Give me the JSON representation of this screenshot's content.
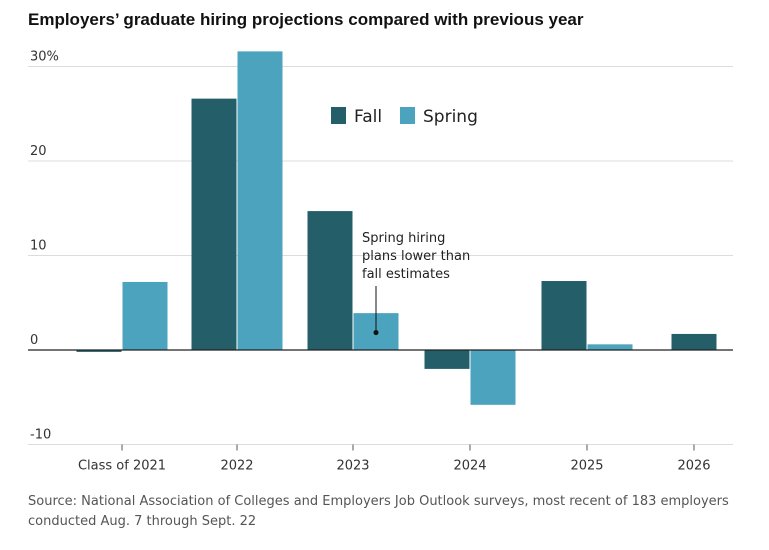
{
  "title": "Employers’ graduate hiring projections compared with previous year",
  "source": "Source: National Association of Colleges and Employers Job Outlook surveys, most recent of 183 employers conducted Aug. 7 through Sept. 22",
  "colors": {
    "fall": "#245f69",
    "spring": "#4ba3bd",
    "grid": "#dcdcdc",
    "axis": "#222222"
  },
  "chart_data": {
    "type": "bar",
    "title": "Employers’ graduate hiring projections compared with previous year",
    "categories": [
      "Class of 2021",
      "2022",
      "2023",
      "2024",
      "2025",
      "2026"
    ],
    "series": [
      {
        "name": "Fall",
        "values": [
          -0.2,
          26.6,
          14.7,
          -2.0,
          7.3,
          1.7
        ]
      },
      {
        "name": "Spring",
        "values": [
          7.2,
          31.6,
          3.9,
          -5.8,
          0.6,
          null
        ]
      }
    ],
    "ylim": [
      -10,
      30
    ],
    "yticks": [
      {
        "value": 30,
        "label": "30%"
      },
      {
        "value": 20,
        "label": "20"
      },
      {
        "value": 10,
        "label": "10"
      },
      {
        "value": 0,
        "label": "0"
      },
      {
        "value": -10,
        "label": "-10"
      }
    ],
    "legend_position": "top-center",
    "grid": true,
    "annotation": {
      "lines": [
        "Spring hiring",
        "plans lower than",
        "fall estimates"
      ],
      "category": "2023",
      "series": "Spring"
    }
  }
}
